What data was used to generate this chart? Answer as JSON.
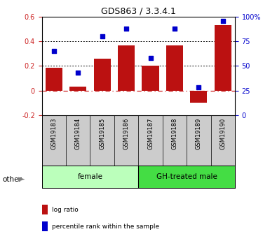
{
  "title": "GDS863 / 3.3.4.1",
  "samples": [
    "GSM19183",
    "GSM19184",
    "GSM19185",
    "GSM19186",
    "GSM19187",
    "GSM19188",
    "GSM19189",
    "GSM19190"
  ],
  "log_ratio": [
    0.185,
    0.03,
    0.26,
    0.365,
    0.2,
    0.365,
    -0.1,
    0.535
  ],
  "percentile_rank": [
    65,
    43,
    80,
    88,
    58,
    88,
    28,
    96
  ],
  "groups": [
    {
      "label": "female",
      "start": 0,
      "end": 3,
      "color": "#bbffbb"
    },
    {
      "label": "GH-treated male",
      "start": 4,
      "end": 7,
      "color": "#44dd44"
    }
  ],
  "bar_color": "#bb1111",
  "dot_color": "#0000cc",
  "ylim_left": [
    -0.2,
    0.6
  ],
  "ylim_right": [
    0,
    100
  ],
  "yticks_left": [
    -0.2,
    0.0,
    0.2,
    0.4,
    0.6
  ],
  "ytick_labels_left": [
    "-0.2",
    "0",
    "0.2",
    "0.4",
    "0.6"
  ],
  "yticks_right": [
    0,
    25,
    50,
    75,
    100
  ],
  "ytick_labels_right": [
    "0",
    "25",
    "50",
    "75",
    "100%"
  ],
  "legend_items": [
    {
      "label": "log ratio",
      "color": "#bb1111"
    },
    {
      "label": "percentile rank within the sample",
      "color": "#0000cc"
    }
  ],
  "other_label": "other",
  "label_bg": "#cccccc",
  "background_color": "#ffffff"
}
